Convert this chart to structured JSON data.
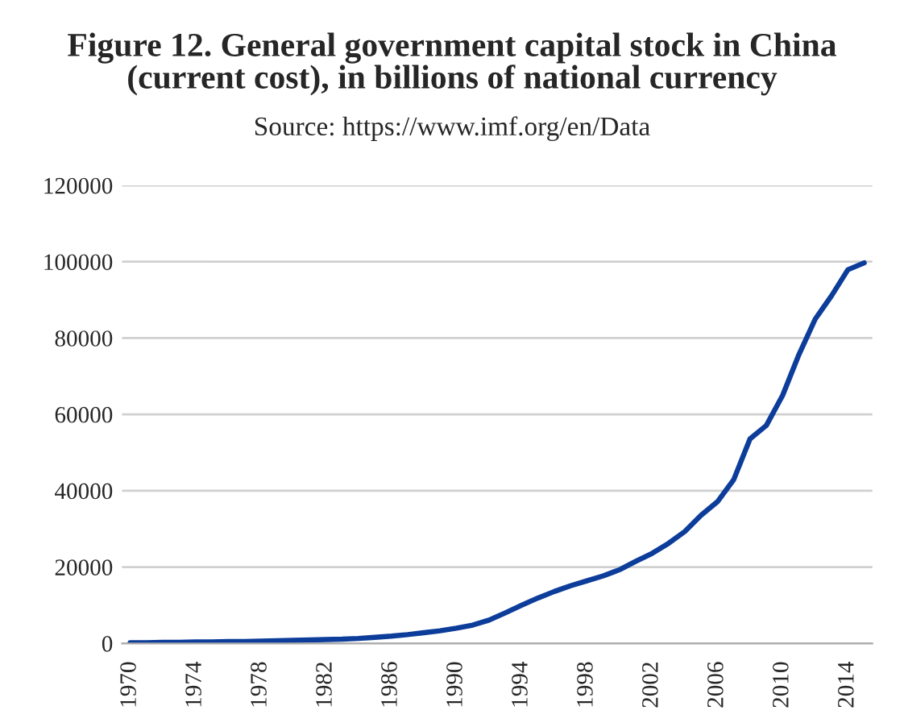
{
  "chart_data": {
    "type": "line",
    "title": "Figure 12. General government capital stock in China\n(current cost), in billions of national currency",
    "annotations": [
      "Source: https://www.imf.org/en/Data"
    ],
    "categories": [
      "1970",
      null,
      null,
      null,
      "1974",
      null,
      null,
      null,
      "1978",
      null,
      null,
      null,
      "1982",
      null,
      null,
      null,
      "1986",
      null,
      null,
      null,
      "1990",
      null,
      null,
      null,
      "1994",
      null,
      null,
      null,
      "1998",
      null,
      null,
      null,
      "2002",
      null,
      null,
      null,
      "2006",
      null,
      null,
      null,
      "2010",
      null,
      null,
      null,
      "2014",
      null
    ],
    "series": [
      {
        "color": "#0d3d9a",
        "values": [
          200,
          200,
          300,
          300,
          400,
          400,
          500,
          500,
          600,
          700,
          800,
          900,
          1000,
          1100,
          1300,
          1600,
          1900,
          2300,
          2800,
          3300,
          4000,
          4800,
          6100,
          8000,
          10000,
          11900,
          13600,
          15100,
          16400,
          17700,
          19300,
          21500,
          23600,
          26200,
          29300,
          33600,
          37100,
          42900,
          53600,
          57100,
          65000,
          75700,
          85000,
          91100,
          97900,
          99700
        ]
      }
    ],
    "ylim": [
      0,
      120000
    ],
    "yticks": [
      0,
      20000,
      40000,
      60000,
      80000,
      100000,
      120000
    ],
    "grid": "y",
    "marker": "none",
    "line_style": "solid"
  }
}
